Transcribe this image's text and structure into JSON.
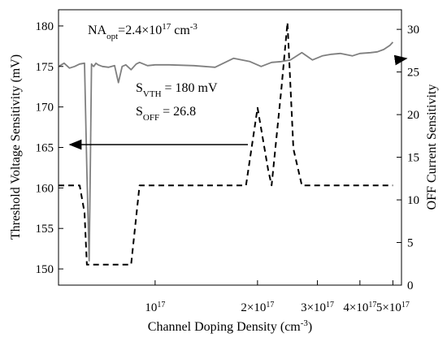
{
  "chart_data": {
    "type": "line",
    "xlabel": "Channel Doping Density (cm⁻³)",
    "ylabel_left": "Threshold Voltage Sensitivity (mV)",
    "ylabel_right": "OFF Current Sensitivity",
    "x_scale": "log",
    "x_range": [
      5.2e+16,
      5.3e+17
    ],
    "x_ticks": [
      {
        "value": 1e+17,
        "mantissa": "",
        "exp": "17"
      },
      {
        "value": 2e+17,
        "mantissa": "2×",
        "exp": "17"
      },
      {
        "value": 3e+17,
        "mantissa": "3×",
        "exp": "17"
      },
      {
        "value": 4e+17,
        "mantissa": "4×",
        "exp": "17"
      },
      {
        "value": 5e+17,
        "mantissa": "5×",
        "exp": "17"
      }
    ],
    "y_left_range": [
      148,
      182
    ],
    "y_left_ticks": [
      "150",
      "155",
      "160",
      "165",
      "170",
      "175",
      "180"
    ],
    "y_right_range": [
      0,
      32.3
    ],
    "y_right_ticks": [
      "0",
      "5",
      "10",
      "15",
      "20",
      "25",
      "30"
    ],
    "legend": "none",
    "grid": false,
    "series": [
      {
        "axis": "left",
        "style": "solid",
        "color": "#7f7f7f",
        "x": [
          5.2e+16,
          5.4e+16,
          5.6e+16,
          5.8e+16,
          6e+16,
          6.2e+16,
          6.3e+16,
          6.4e+16,
          6.45e+16,
          6.5e+16,
          6.55e+16,
          6.6e+16,
          6.7e+16,
          6.8e+16,
          7e+16,
          7.3e+16,
          7.6e+16,
          7.8e+16,
          8e+16,
          8.2e+16,
          8.5e+16,
          8.8e+16,
          9e+16,
          9.5e+16,
          1e+17,
          1.1e+17,
          1.3e+17,
          1.5e+17,
          1.7e+17,
          1.9e+17,
          2.05e+17,
          2.2e+17,
          2.35e+17,
          2.5e+17,
          2.7e+17,
          2.9e+17,
          3.1e+17,
          3.3e+17,
          3.5e+17,
          3.8e+17,
          4e+17,
          4.3e+17,
          4.5e+17,
          4.7e+17,
          4.9e+17,
          5e+17
        ],
        "y": [
          175.0,
          175.4,
          174.8,
          175.0,
          175.3,
          175.4,
          162.0,
          151.0,
          163.0,
          175.3,
          175.1,
          175.0,
          175.4,
          175.2,
          175.0,
          174.9,
          175.1,
          173.0,
          175.0,
          175.2,
          174.6,
          175.3,
          175.5,
          175.1,
          175.2,
          175.2,
          175.1,
          174.9,
          176.0,
          175.6,
          175.0,
          175.5,
          175.6,
          175.8,
          176.7,
          175.8,
          176.3,
          176.5,
          176.6,
          176.3,
          176.6,
          176.7,
          176.8,
          177.1,
          177.6,
          178.0
        ]
      },
      {
        "axis": "right",
        "style": "dashed",
        "color": "#000000",
        "x": [
          5.2e+16,
          6e+16,
          6.2e+16,
          6.3e+16,
          6.5e+16,
          8e+16,
          8.5e+16,
          9e+16,
          1e+17,
          1.3e+17,
          1.6e+17,
          1.85e+17,
          2e+17,
          2.15e+17,
          2.2e+17,
          2.35e+17,
          2.45e+17,
          2.55e+17,
          2.7e+17,
          3.5e+17,
          5e+17
        ],
        "y": [
          11.7,
          11.7,
          8.5,
          2.4,
          2.4,
          2.4,
          2.4,
          11.7,
          11.7,
          11.7,
          11.7,
          11.7,
          20.8,
          13.5,
          11.7,
          23.0,
          30.8,
          16.0,
          11.7,
          11.7,
          11.7
        ]
      }
    ],
    "annotations": [
      {
        "id": "na_opt",
        "text": "NAopt=2.4×10¹⁷ cm⁻³"
      },
      {
        "id": "s_vth",
        "text": "SVTH = 180 mV"
      },
      {
        "id": "s_off",
        "text": "SOFF = 26.8"
      }
    ]
  }
}
